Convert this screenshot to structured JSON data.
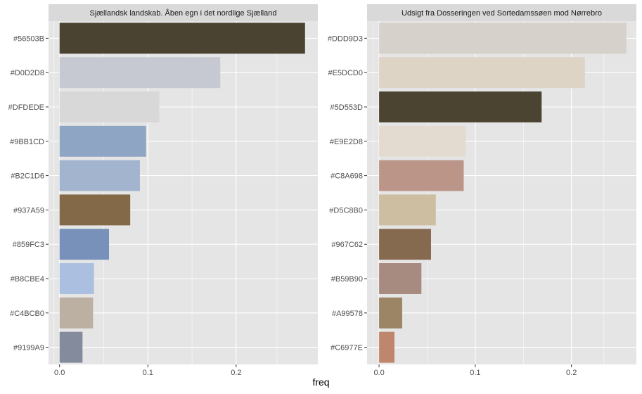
{
  "colors": {
    "panel_bg": "#E5E5E5",
    "strip_bg": "#D9D9D9",
    "grid": "#FFFFFF",
    "text": "#1A1A1A",
    "tick_label": "#4D4D4D"
  },
  "chart_data": {
    "type": "bar",
    "orientation": "horizontal",
    "xlabel": "freq",
    "panels": [
      {
        "title": "Sjællandsk landskab. Åben egn i det nordlige Sjælland",
        "xlim": [
          -0.0125,
          0.2925
        ],
        "xticks": [
          0.0,
          0.1,
          0.2
        ],
        "xtick_labels": [
          "0.0",
          "0.1",
          "0.2"
        ],
        "categories": [
          "#56503B",
          "#D0D2D8",
          "#DFDEDE",
          "#9BB1CD",
          "#B2C1D6",
          "#937A59",
          "#859FC3",
          "#B8CBE4",
          "#C4BCB0",
          "#9199A9"
        ],
        "values": [
          0.278,
          0.182,
          0.113,
          0.098,
          0.091,
          0.08,
          0.056,
          0.039,
          0.038,
          0.026
        ],
        "bar_colors": [
          "#4A4331",
          "#C6C9D1",
          "#D8D8D8",
          "#8FA5C4",
          "#A3B4CF",
          "#836948",
          "#7791BA",
          "#ABC0E0",
          "#BCB0A2",
          "#848B9C"
        ]
      },
      {
        "title": "Udsigt fra Dosseringen ved Sortedamssøen mod Nørrebro",
        "xlim": [
          -0.0125,
          0.2675
        ],
        "xticks": [
          0.0,
          0.1,
          0.2
        ],
        "xtick_labels": [
          "0.0",
          "0.1",
          "0.2"
        ],
        "categories": [
          "#DDD9D3",
          "#E5DCD0",
          "#5D553D",
          "#E9E2D8",
          "#C8A698",
          "#D5C8B0",
          "#967C62",
          "#B59B90",
          "#A99578",
          "#C6977E"
        ],
        "values": [
          0.257,
          0.214,
          0.169,
          0.09,
          0.088,
          0.059,
          0.054,
          0.044,
          0.024,
          0.016
        ],
        "bar_colors": [
          "#D6D1CB",
          "#DED4C5",
          "#4A4430",
          "#E3DBD0",
          "#BB9588",
          "#CDBEA2",
          "#866A50",
          "#A88B80",
          "#9B8564",
          "#BE876D"
        ]
      }
    ]
  }
}
